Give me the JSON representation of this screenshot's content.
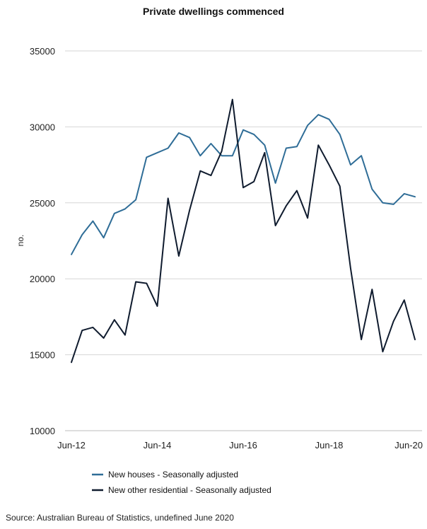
{
  "chart_data": {
    "type": "line",
    "title": "Private dwellings commenced",
    "ylabel": "no.",
    "xlabel": "",
    "ylim": [
      10000,
      35000
    ],
    "yticks": [
      10000,
      15000,
      20000,
      25000,
      30000,
      35000
    ],
    "xtick_labels": [
      "Jun-12",
      "Jun-14",
      "Jun-16",
      "Jun-18",
      "Jun-20"
    ],
    "grid": true,
    "legend_placement": "bottom",
    "series": [
      {
        "name": "New houses - Seasonally adjusted",
        "color": "#2f6d97",
        "values": [
          21600,
          22900,
          23800,
          22700,
          24300,
          24600,
          25200,
          28000,
          28300,
          28600,
          29600,
          29300,
          28100,
          28900,
          28100,
          28100,
          29800,
          29500,
          28800,
          26300,
          28600,
          28700,
          30100,
          30800,
          30500,
          29500,
          27500,
          28100,
          25900,
          25000,
          24900,
          25600,
          25400
        ]
      },
      {
        "name": "New other residential - Seasonally adjusted",
        "color": "#0f1b2e",
        "values": [
          14500,
          16600,
          16800,
          16100,
          17300,
          16300,
          19800,
          19700,
          18200,
          25300,
          21500,
          24500,
          27100,
          26800,
          28400,
          31800,
          26000,
          26400,
          28300,
          23500,
          24800,
          25800,
          24000,
          28800,
          27500,
          26100,
          20700,
          16000,
          19300,
          15200,
          17200,
          18600,
          16000
        ]
      }
    ]
  },
  "source": "Source: Australian Bureau of Statistics, undefined June 2020"
}
